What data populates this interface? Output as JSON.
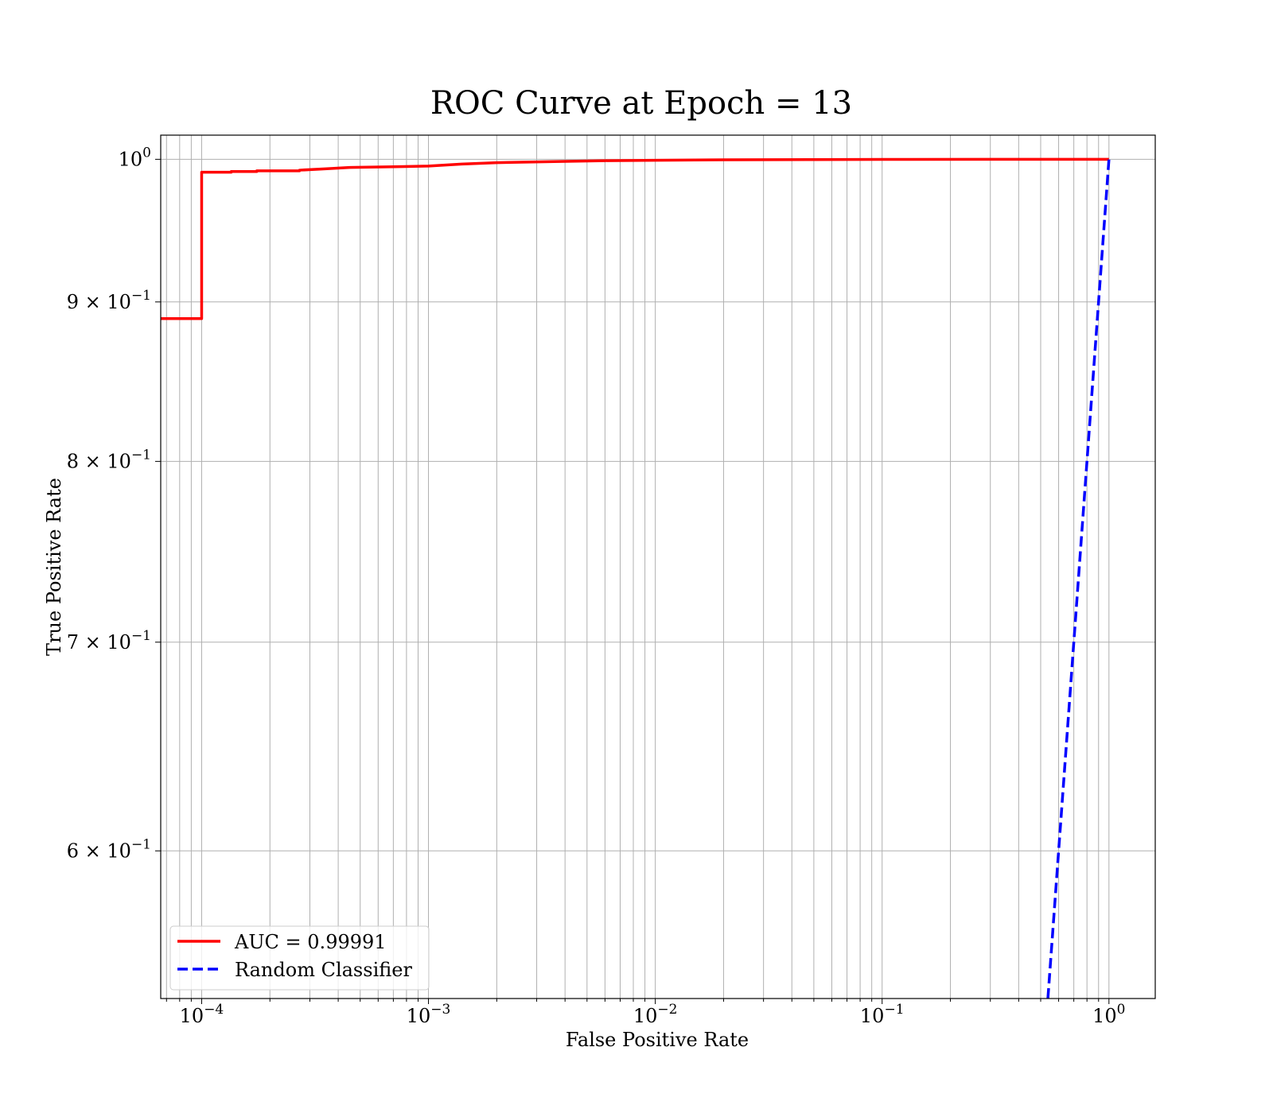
{
  "chart_data": {
    "type": "line",
    "title": "ROC Curve at Epoch = 13",
    "xlabel": "False Positive Rate",
    "ylabel": "True Positive Rate",
    "xscale": "log",
    "yscale": "log",
    "xlim": [
      6.6e-05,
      1.6
    ],
    "ylim": [
      0.538,
      1.018
    ],
    "grid": true,
    "grid_minor": true,
    "legend_location": "lower left",
    "x_ticks": [
      {
        "value": 0.0001,
        "base": "10",
        "exp": "−4"
      },
      {
        "value": 0.001,
        "base": "10",
        "exp": "−3"
      },
      {
        "value": 0.01,
        "base": "10",
        "exp": "−2"
      },
      {
        "value": 0.1,
        "base": "10",
        "exp": "−1"
      },
      {
        "value": 1,
        "base": "10",
        "exp": "0"
      }
    ],
    "y_ticks": [
      {
        "value": 1.0,
        "mant": "",
        "base": "10",
        "exp": "0"
      },
      {
        "value": 0.9,
        "mant": "9 × ",
        "base": "10",
        "exp": "−1"
      },
      {
        "value": 0.8,
        "mant": "8 × ",
        "base": "10",
        "exp": "−1"
      },
      {
        "value": 0.7,
        "mant": "7 × ",
        "base": "10",
        "exp": "−1"
      },
      {
        "value": 0.6,
        "mant": "6 × ",
        "base": "10",
        "exp": "−1"
      }
    ],
    "series": [
      {
        "name": "AUC = 0.99991",
        "color": "#ff0000",
        "style": "solid",
        "x": [
          6.6e-05,
          0.0001,
          0.0001,
          0.000135,
          0.000135,
          0.000175,
          0.000175,
          0.00027,
          0.00027,
          0.00035,
          0.00045,
          0.0007,
          0.001,
          0.0014,
          0.002,
          0.004,
          0.006,
          0.01,
          0.02,
          0.05,
          0.1,
          0.3,
          0.6,
          1.0
        ],
        "y": [
          0.889,
          0.889,
          0.9905,
          0.9905,
          0.991,
          0.991,
          0.9915,
          0.9915,
          0.992,
          0.993,
          0.994,
          0.9945,
          0.995,
          0.9965,
          0.9975,
          0.9985,
          0.999,
          0.9993,
          0.9996,
          0.9998,
          0.9999,
          1.0,
          1.0,
          1.0
        ]
      },
      {
        "name": "Random Classifier",
        "color": "#0000ff",
        "style": "dashed",
        "x": [
          0.538,
          0.6,
          0.7,
          0.8,
          0.9,
          1.0
        ],
        "y": [
          0.538,
          0.6,
          0.7,
          0.8,
          0.9,
          1.0
        ]
      }
    ]
  }
}
